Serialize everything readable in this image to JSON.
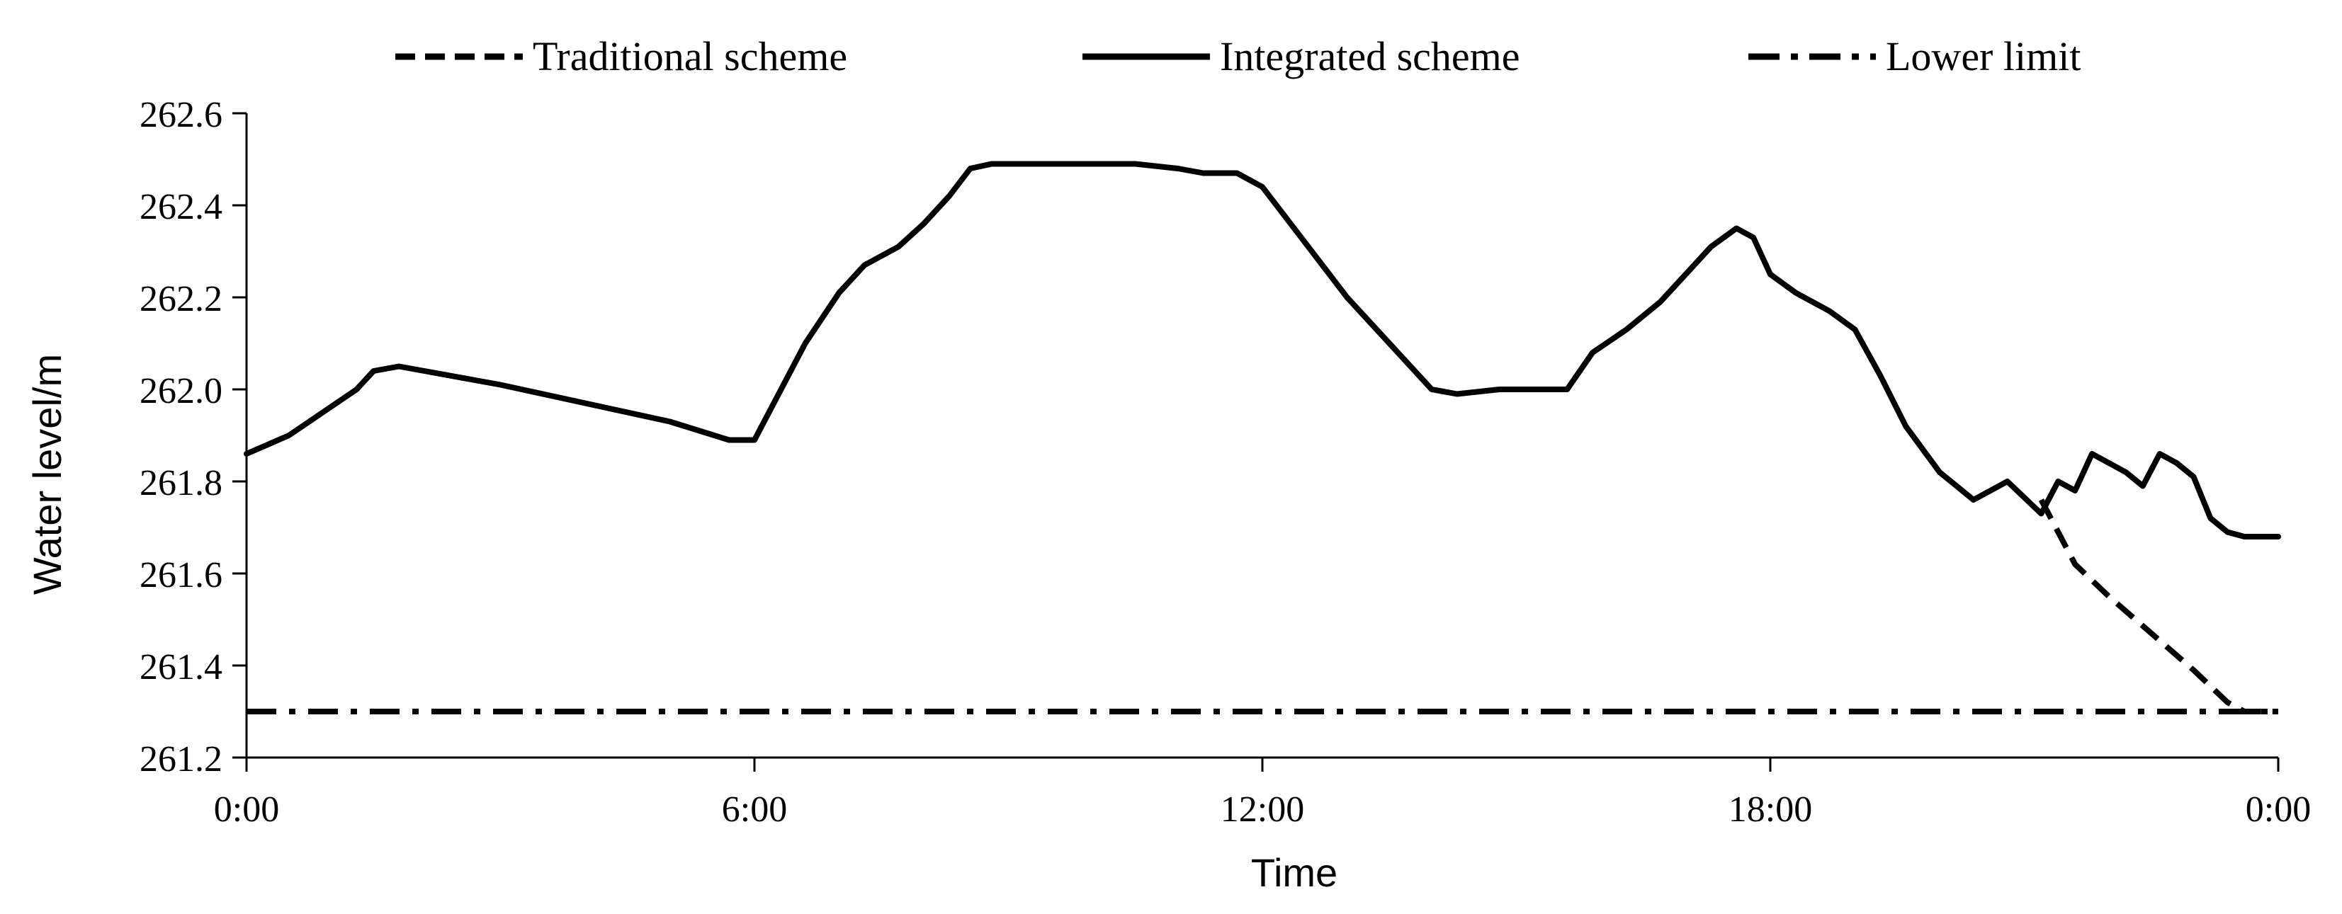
{
  "chart_data": {
    "type": "line",
    "title": "",
    "xlabel": "Time",
    "ylabel": "Water level/m",
    "xlim": [
      0,
      24
    ],
    "ylim": [
      261.2,
      262.6
    ],
    "x_ticks": [
      0,
      6,
      12,
      18,
      24
    ],
    "x_tick_labels": [
      "0:00",
      "6:00",
      "12:00",
      "18:00",
      "0:00"
    ],
    "y_ticks": [
      261.2,
      261.4,
      261.6,
      261.8,
      262.0,
      262.2,
      262.4,
      262.6
    ],
    "y_tick_labels": [
      "261.2",
      "261.4",
      "261.6",
      "261.8",
      "262.0",
      "262.2",
      "262.4",
      "262.6"
    ],
    "grid": false,
    "legend_position": "top",
    "series": [
      {
        "name": "Traditional scheme",
        "style": "dashed",
        "color": "#000000",
        "x": [
          21.2,
          21.6,
          22.0,
          22.5,
          23.0,
          23.4,
          23.6,
          24.0
        ],
        "y": [
          261.76,
          261.62,
          261.55,
          261.47,
          261.39,
          261.32,
          261.3,
          261.3
        ]
      },
      {
        "name": "Integrated scheme",
        "style": "solid",
        "color": "#000000",
        "x": [
          0.0,
          0.5,
          0.9,
          1.3,
          1.5,
          1.8,
          2.1,
          3.0,
          4.0,
          5.0,
          5.7,
          6.0,
          6.2,
          6.6,
          7.0,
          7.3,
          7.7,
          8.0,
          8.3,
          8.55,
          8.8,
          9.5,
          10.5,
          11.0,
          11.3,
          11.7,
          12.0,
          12.5,
          13.0,
          13.5,
          14.0,
          14.3,
          14.8,
          15.3,
          15.6,
          15.9,
          16.3,
          16.7,
          17.0,
          17.3,
          17.6,
          17.8,
          18.0,
          18.3,
          18.7,
          19.0,
          19.3,
          19.6,
          20.0,
          20.4,
          20.8,
          21.2,
          21.4,
          21.6,
          21.8,
          22.0,
          22.2,
          22.4,
          22.6,
          22.8,
          23.0,
          23.2,
          23.4,
          23.6,
          23.8,
          24.0
        ],
        "y": [
          261.86,
          261.9,
          261.95,
          262.0,
          262.04,
          262.05,
          262.04,
          262.01,
          261.97,
          261.93,
          261.89,
          261.89,
          261.96,
          262.1,
          262.21,
          262.27,
          262.31,
          262.36,
          262.42,
          262.48,
          262.49,
          262.49,
          262.49,
          262.48,
          262.47,
          262.47,
          262.44,
          262.32,
          262.2,
          262.1,
          262.0,
          261.99,
          262.0,
          262.0,
          262.0,
          262.08,
          262.13,
          262.19,
          262.25,
          262.31,
          262.35,
          262.33,
          262.25,
          262.21,
          262.17,
          262.13,
          262.03,
          261.92,
          261.82,
          261.76,
          261.8,
          261.73,
          261.8,
          261.78,
          261.86,
          261.84,
          261.82,
          261.79,
          261.86,
          261.84,
          261.81,
          261.72,
          261.69,
          261.68,
          261.68,
          261.68
        ]
      },
      {
        "name": "Lower limit",
        "style": "dash-dot",
        "color": "#000000",
        "x": [
          0.0,
          24.0
        ],
        "y": [
          261.3,
          261.3
        ]
      }
    ]
  }
}
